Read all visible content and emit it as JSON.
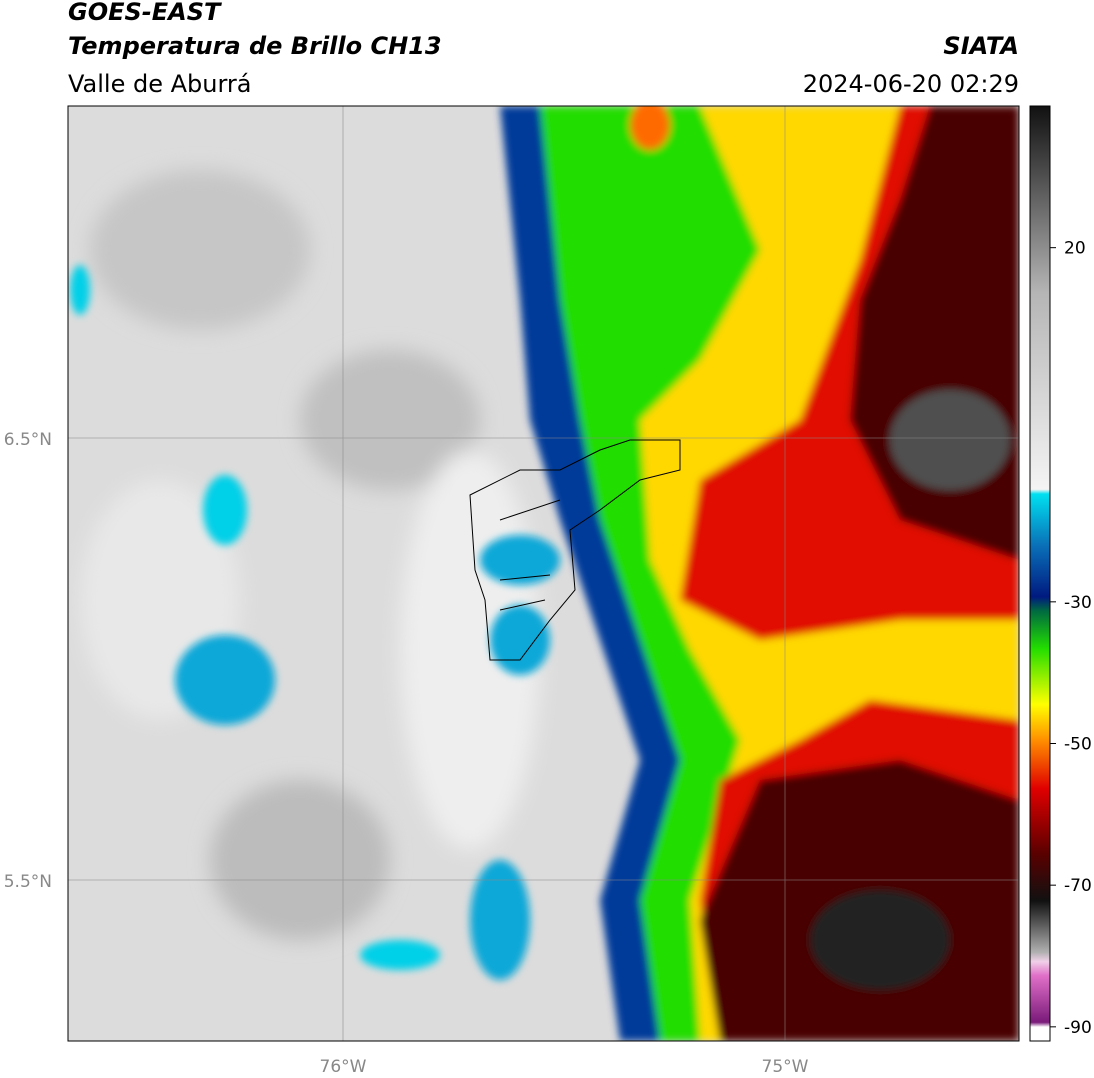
{
  "header": {
    "title": "GOES-EAST",
    "subtitle": "Temperatura de Brillo CH13",
    "region": "Valle de Aburrá",
    "agency": "SIATA",
    "timestamp": "2024-06-20 02:29"
  },
  "map": {
    "lat_labels": [
      "6.5°N",
      "5.5°N"
    ],
    "lon_labels": [
      "76°W",
      "75°W"
    ]
  },
  "colorbar": {
    "range": [
      -92,
      40
    ],
    "ticks": [
      20,
      -30,
      -50,
      -70,
      -90
    ]
  }
}
